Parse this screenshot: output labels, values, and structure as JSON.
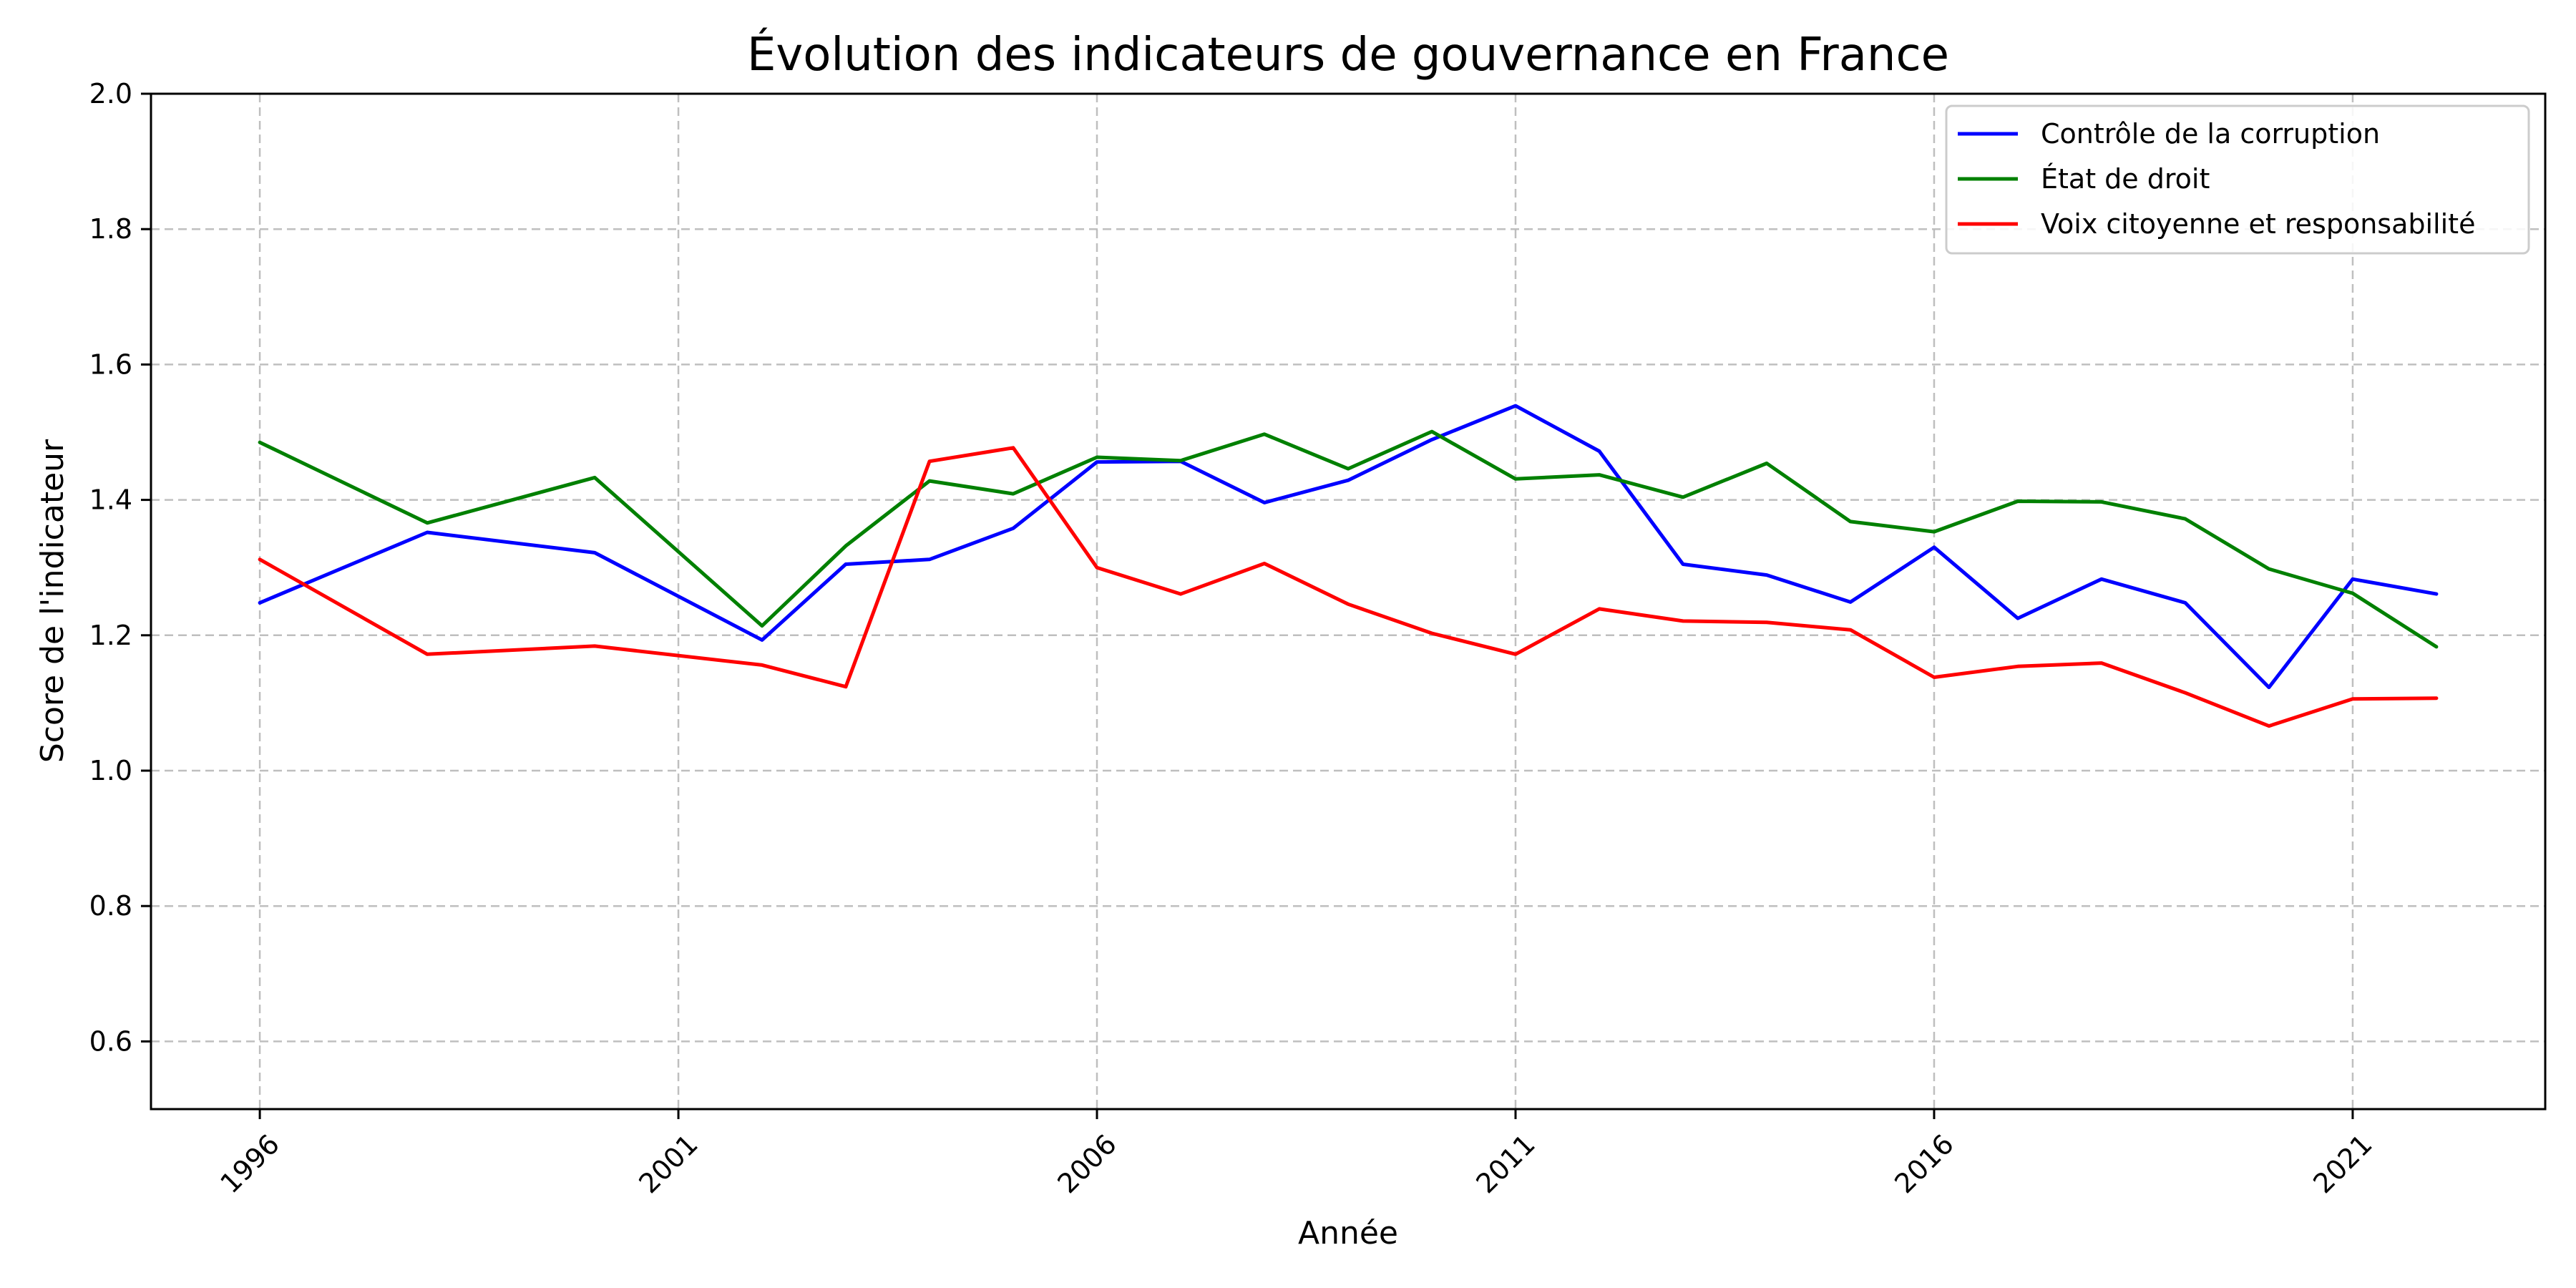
{
  "chart_data": {
    "type": "line",
    "title": "Évolution des indicateurs de gouvernance en France",
    "xlabel": "Année",
    "ylabel": "Score de l'indicateur",
    "xlim": [
      1994.7,
      2023.3
    ],
    "ylim": [
      0.5,
      2.0
    ],
    "x_ticks": [
      1996,
      2001,
      2006,
      2011,
      2016,
      2021
    ],
    "y_ticks": [
      0.6,
      0.8,
      1.0,
      1.2,
      1.4,
      1.6,
      1.8,
      2.0
    ],
    "y_tick_labels": [
      "0.6",
      "0.8",
      "1.0",
      "1.2",
      "1.4",
      "1.6",
      "1.8",
      "2.0"
    ],
    "grid": true,
    "legend_position": "top-right",
    "x": [
      1996,
      1998,
      2000,
      2002,
      2003,
      2004,
      2005,
      2006,
      2007,
      2008,
      2009,
      2010,
      2011,
      2012,
      2013,
      2014,
      2015,
      2016,
      2017,
      2018,
      2019,
      2020,
      2021,
      2022
    ],
    "series": [
      {
        "name": "Contrôle de la corruption",
        "color": "#0000ff",
        "values": [
          1.248,
          1.352,
          1.322,
          1.193,
          1.305,
          1.312,
          1.358,
          1.456,
          1.457,
          1.396,
          1.429,
          1.489,
          1.539,
          1.472,
          1.305,
          1.289,
          1.249,
          1.33,
          1.225,
          1.283,
          1.248,
          1.123,
          1.283,
          1.261
        ]
      },
      {
        "name": "État de droit",
        "color": "#008000",
        "values": [
          1.485,
          1.366,
          1.433,
          1.214,
          1.332,
          1.428,
          1.409,
          1.463,
          1.458,
          1.497,
          1.446,
          1.501,
          1.431,
          1.437,
          1.404,
          1.454,
          1.368,
          1.353,
          1.398,
          1.397,
          1.372,
          1.298,
          1.262,
          1.183
        ]
      },
      {
        "name": "Voix citoyenne et responsabilité",
        "color": "#ff0000",
        "values": [
          1.312,
          1.172,
          1.184,
          1.156,
          1.124,
          1.457,
          1.477,
          1.3,
          1.261,
          1.306,
          1.246,
          1.203,
          1.172,
          1.239,
          1.221,
          1.219,
          1.208,
          1.138,
          1.154,
          1.159,
          1.115,
          1.066,
          1.106,
          1.107
        ]
      }
    ]
  }
}
